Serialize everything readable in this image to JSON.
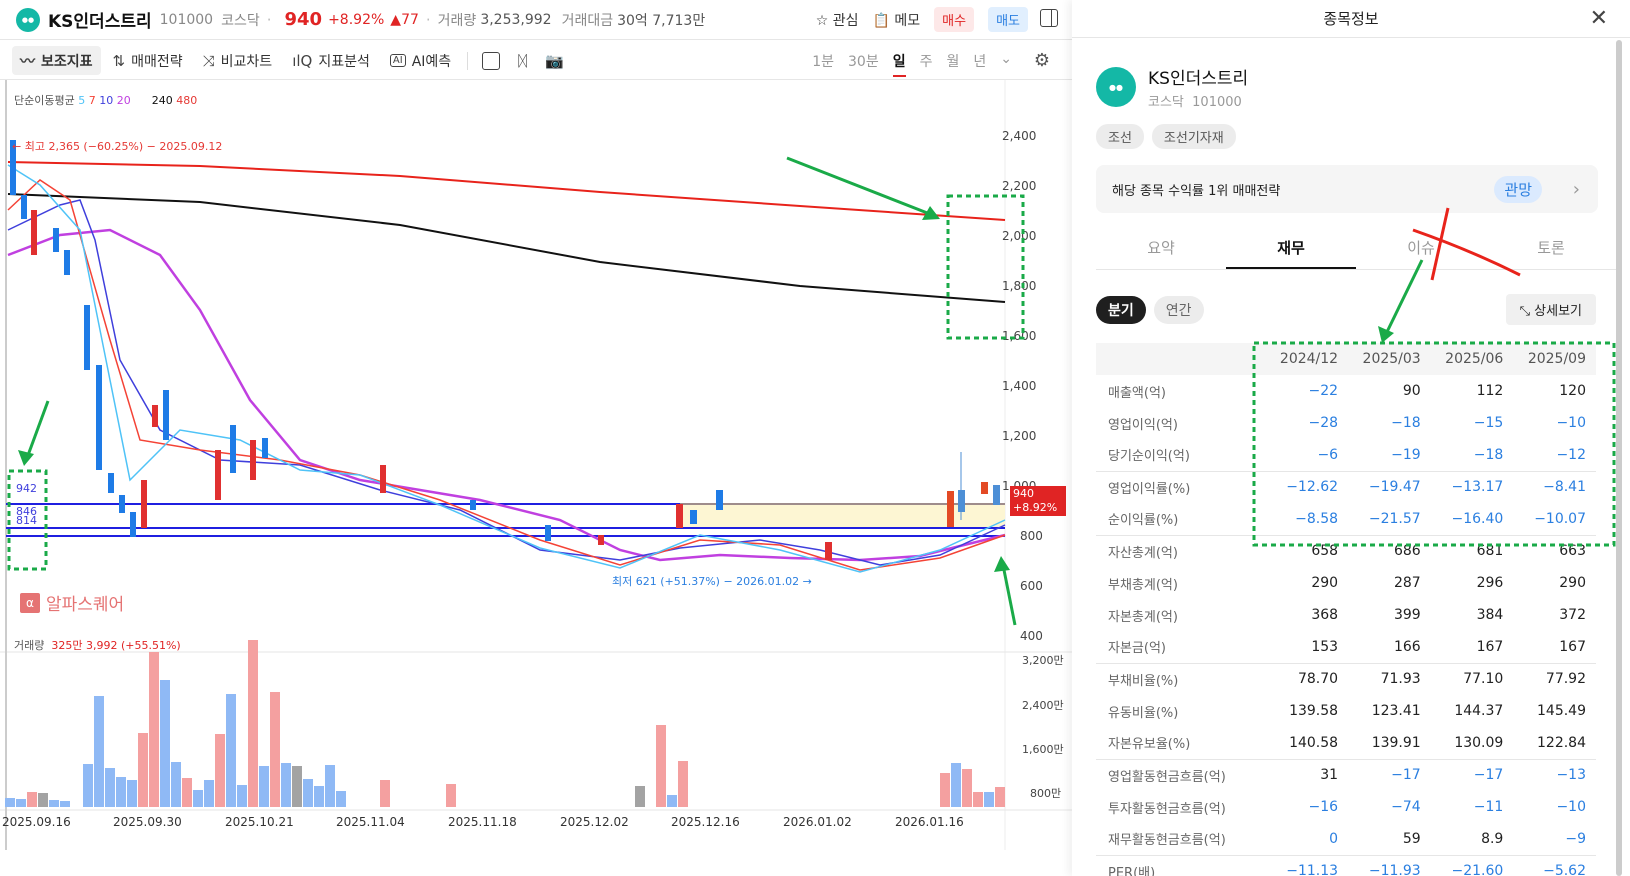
{
  "header": {
    "stock_name": "KS인더스트리",
    "code": "101000",
    "market": "코스닥",
    "price": "940",
    "change_pct": "+8.92%",
    "change_abs": "▲77",
    "volume_label": "거래량",
    "volume": "3,253,992",
    "amount_label": "거래대금",
    "amount": "30억 7,713만",
    "watch_label": "관심",
    "memo_label": "메모",
    "buy_label": "매수",
    "sell_label": "매도"
  },
  "toolbar": {
    "items": [
      {
        "icon": "indicator-icon",
        "label": "보조지표",
        "active": true
      },
      {
        "icon": "strategy-icon",
        "label": "매매전략"
      },
      {
        "icon": "compare-icon",
        "label": "비교차트"
      },
      {
        "icon": "analysis-icon",
        "label": "지표분석"
      },
      {
        "icon": "ai-icon",
        "label": "AI예측"
      }
    ],
    "periods": [
      "1분",
      "30분",
      "일",
      "주",
      "월",
      "년"
    ],
    "selected_period": "일"
  },
  "chart": {
    "ma_legend_label": "단순이동평균",
    "ma_periods": [
      {
        "value": "5",
        "color": "#4fc3f7"
      },
      {
        "value": "7",
        "color": "#f44336"
      },
      {
        "value": "10",
        "color": "#3f3fdc"
      },
      {
        "value": "20",
        "color": "#c040e0"
      },
      {
        "value": "240",
        "color": "#111111"
      },
      {
        "value": "480",
        "color": "#e53935"
      }
    ],
    "high_annotation": "← 최고 2,365 (−60.25%) − 2025.09.12",
    "low_annotation": "최저 621 (+51.37%) − 2026.01.02 →",
    "price_levels": [
      "942",
      "846",
      "814"
    ],
    "y_ticks": [
      "2,400",
      "2,200",
      "2,000",
      "1,800",
      "1,600",
      "1,400",
      "1,200",
      "1,000",
      "800",
      "600",
      "400"
    ],
    "price_tag": {
      "price": "940",
      "pct": "+8.92%"
    },
    "watermark": "알파스퀘어",
    "volume_label": "거래량",
    "volume_value": "325만 3,992 (+55.51%)",
    "volume_ticks": [
      "3,200만",
      "2,400만",
      "1,600만",
      "800만"
    ],
    "x_ticks": [
      "2025.09.16",
      "2025.09.30",
      "2025.10.21",
      "2025.11.04",
      "2025.11.18",
      "2025.12.02",
      "2025.12.16",
      "2026.01.02",
      "2026.01.16"
    ]
  },
  "info_panel": {
    "title": "종목정보",
    "company_name": "KS인더스트리",
    "market": "코스닥",
    "code": "101000",
    "tags": [
      "조선",
      "조선기자재"
    ],
    "strategy_text": "해당 종목 수익률 1위 매매전략",
    "strategy_badge": "관망",
    "tabs": [
      "요약",
      "재무",
      "이슈",
      "토론"
    ],
    "selected_tab": "재무",
    "period_toggle": [
      "분기",
      "연간"
    ],
    "selected_period": "분기",
    "detail_button": "상세보기",
    "table": {
      "columns": [
        "",
        "2024/12",
        "2025/03",
        "2025/06",
        "2025/09"
      ],
      "rows": [
        {
          "label": "매출액(억)",
          "values": [
            "-22",
            "90",
            "112",
            "120"
          ],
          "group_start": false
        },
        {
          "label": "영업이익(억)",
          "values": [
            "-28",
            "-18",
            "-15",
            "-10"
          ]
        },
        {
          "label": "당기순이익(억)",
          "values": [
            "-6",
            "-19",
            "-18",
            "-12"
          ]
        },
        {
          "label": "영업이익률(%)",
          "values": [
            "-12.62",
            "-19.47",
            "-13.17",
            "-8.41"
          ],
          "group_start": true
        },
        {
          "label": "순이익률(%)",
          "values": [
            "-8.58",
            "-21.57",
            "-16.40",
            "-10.07"
          ]
        },
        {
          "label": "자산총계(억)",
          "values": [
            "658",
            "686",
            "681",
            "663"
          ],
          "group_start": true
        },
        {
          "label": "부채총계(억)",
          "values": [
            "290",
            "287",
            "296",
            "290"
          ]
        },
        {
          "label": "자본총계(억)",
          "values": [
            "368",
            "399",
            "384",
            "372"
          ]
        },
        {
          "label": "자본금(억)",
          "values": [
            "153",
            "166",
            "167",
            "167"
          ]
        },
        {
          "label": "부채비율(%)",
          "values": [
            "78.70",
            "71.93",
            "77.10",
            "77.92"
          ],
          "group_start": true
        },
        {
          "label": "유동비율(%)",
          "values": [
            "139.58",
            "123.41",
            "144.37",
            "145.49"
          ]
        },
        {
          "label": "자본유보율(%)",
          "values": [
            "140.58",
            "139.91",
            "130.09",
            "122.84"
          ]
        },
        {
          "label": "영업활동현금흐름(억)",
          "values": [
            "31",
            "-17",
            "-17",
            "-13"
          ],
          "group_start": true
        },
        {
          "label": "투자활동현금흐름(억)",
          "values": [
            "-16",
            "-74",
            "-11",
            "-10"
          ]
        },
        {
          "label": "재무활동현금흐름(억)",
          "values": [
            "0",
            "59",
            "8.9",
            "-9"
          ]
        },
        {
          "label": "PER(배)",
          "values": [
            "-11.13",
            "-11.93",
            "-21.60",
            "-5.62"
          ],
          "group_start": true
        }
      ]
    }
  },
  "colors": {
    "up": "#e02424",
    "down": "#2b7fe0",
    "annotation_green": "#1aaa48"
  }
}
